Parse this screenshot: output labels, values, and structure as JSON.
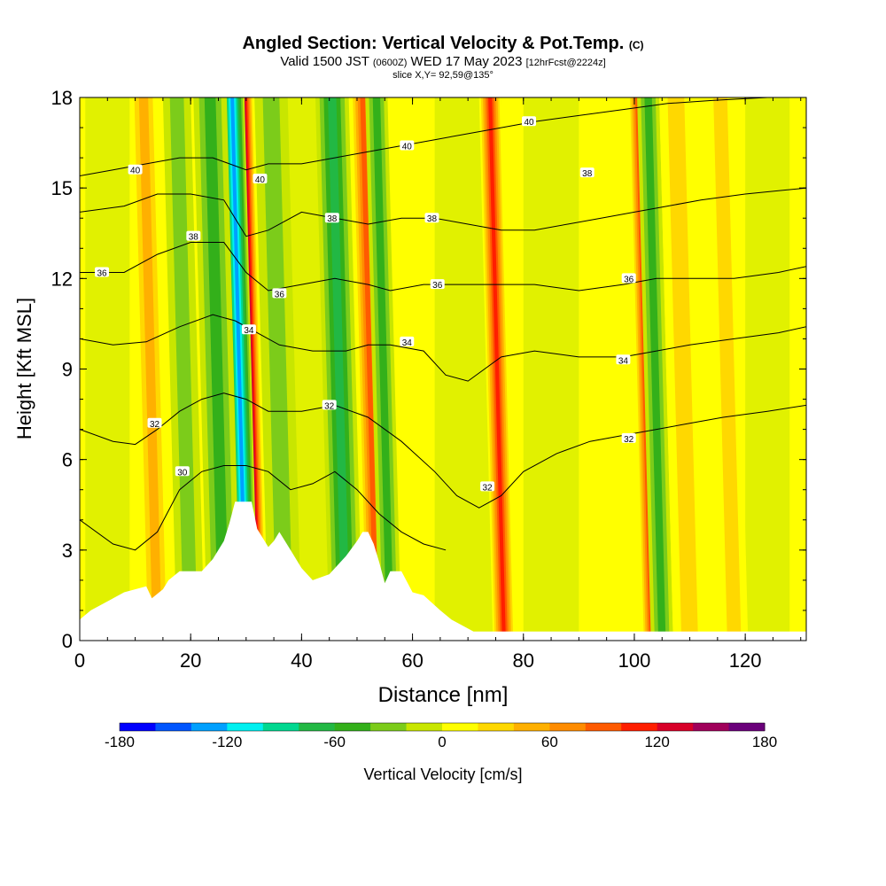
{
  "header": {
    "title": "Angled Section: Vertical Velocity & Pot.Temp.",
    "title_units": "(C)",
    "valid_prefix": "Valid 1500 JST",
    "valid_utc": "(0600Z)",
    "valid_date": "WED 17 May 2023",
    "forecast": "[12hrFcst@2224z]",
    "slice": "slice X,Y= 92,59@135°"
  },
  "chart_data": {
    "type": "heatmap",
    "xlabel": "Distance [nm]",
    "ylabel": "Height [Kft MSL]",
    "xlim": [
      0,
      131
    ],
    "ylim": [
      0,
      18
    ],
    "x_ticks": [
      0,
      20,
      40,
      60,
      80,
      100,
      120
    ],
    "y_ticks": [
      0,
      3,
      6,
      9,
      12,
      15,
      18
    ],
    "colorbar": {
      "label": "Vertical Velocity [cm/s]",
      "min": -180,
      "max": 180,
      "step": 20,
      "tick_values": [
        -180,
        -120,
        -60,
        0,
        60,
        120,
        180
      ],
      "tick_labels": [
        "-180",
        "-120",
        "-60",
        "0",
        "60",
        "120",
        "180"
      ],
      "colors": [
        "#0000ff",
        "#0055ff",
        "#00a0ff",
        "#00f0f0",
        "#00d890",
        "#22b844",
        "#33b01a",
        "#7ccc1a",
        "#c8e600",
        "#ffff00",
        "#ffd800",
        "#ffb000",
        "#ff8c00",
        "#ff5a00",
        "#ff1e00",
        "#d80028",
        "#a0005a",
        "#6a007a"
      ]
    },
    "vertical_velocity_features": [
      {
        "x": 14,
        "w": 2.5,
        "value": 75
      },
      {
        "x": 28.5,
        "w": 2.0,
        "value": 70
      },
      {
        "x": 32,
        "w": 1.8,
        "value": 170
      },
      {
        "x": 30,
        "w": 2.2,
        "value": -150
      },
      {
        "x": 26,
        "w": 3.0,
        "value": -70
      },
      {
        "x": 20,
        "w": 2.5,
        "value": -50
      },
      {
        "x": 37,
        "w": 3.0,
        "value": -40
      },
      {
        "x": 48,
        "w": 3.0,
        "value": -90
      },
      {
        "x": 53.5,
        "w": 2.2,
        "value": 110
      },
      {
        "x": 56,
        "w": 2.0,
        "value": -60
      },
      {
        "x": 76.5,
        "w": 2.0,
        "value": 120
      },
      {
        "x": 103,
        "w": 1.6,
        "value": 100
      },
      {
        "x": 105,
        "w": 2.0,
        "value": -60
      },
      {
        "x": 110,
        "w": 3.0,
        "value": 40
      },
      {
        "x": 118,
        "w": 2.5,
        "value": 40
      }
    ],
    "terrain_height_kft": [
      [
        0,
        0.7
      ],
      [
        2,
        1.0
      ],
      [
        5,
        1.3
      ],
      [
        8,
        1.6
      ],
      [
        12,
        1.8
      ],
      [
        13,
        1.4
      ],
      [
        15,
        1.7
      ],
      [
        16,
        2.0
      ],
      [
        18,
        2.3
      ],
      [
        22,
        2.3
      ],
      [
        24,
        2.7
      ],
      [
        26,
        3.3
      ],
      [
        27,
        3.9
      ],
      [
        28,
        4.6
      ],
      [
        31,
        4.6
      ],
      [
        32,
        3.7
      ],
      [
        34,
        3.1
      ],
      [
        35,
        3.3
      ],
      [
        36,
        3.6
      ],
      [
        38,
        3.0
      ],
      [
        40,
        2.4
      ],
      [
        42,
        2.0
      ],
      [
        45,
        2.2
      ],
      [
        48,
        2.8
      ],
      [
        50,
        3.3
      ],
      [
        51,
        3.6
      ],
      [
        52,
        3.6
      ],
      [
        53,
        3.2
      ],
      [
        54,
        2.6
      ],
      [
        55,
        1.9
      ],
      [
        56,
        2.3
      ],
      [
        58,
        2.3
      ],
      [
        60,
        1.6
      ],
      [
        62,
        1.5
      ],
      [
        65,
        1.0
      ],
      [
        67,
        0.7
      ],
      [
        71,
        0.3
      ],
      [
        131,
        0.3
      ]
    ],
    "pot_temp_contours_c": [
      {
        "value": 30,
        "label": "30",
        "points": [
          [
            0,
            4.0
          ],
          [
            6,
            3.2
          ],
          [
            10,
            3.0
          ],
          [
            14,
            3.6
          ],
          [
            18,
            5.0
          ],
          [
            22,
            5.6
          ],
          [
            26,
            5.8
          ],
          [
            30,
            5.8
          ],
          [
            34,
            5.6
          ],
          [
            38,
            5.0
          ],
          [
            42,
            5.2
          ],
          [
            46,
            5.6
          ],
          [
            50,
            5.0
          ],
          [
            54,
            4.2
          ],
          [
            58,
            3.6
          ],
          [
            62,
            3.2
          ],
          [
            66,
            3.0
          ]
        ]
      },
      {
        "value": 32,
        "label": "32",
        "points": [
          [
            0,
            7.0
          ],
          [
            6,
            6.6
          ],
          [
            10,
            6.5
          ],
          [
            14,
            7.0
          ],
          [
            18,
            7.6
          ],
          [
            22,
            8.0
          ],
          [
            26,
            8.2
          ],
          [
            30,
            8.0
          ],
          [
            34,
            7.6
          ],
          [
            40,
            7.6
          ],
          [
            46,
            7.8
          ],
          [
            52,
            7.4
          ],
          [
            58,
            6.6
          ],
          [
            64,
            5.6
          ],
          [
            68,
            4.8
          ],
          [
            72,
            4.4
          ],
          [
            76,
            4.8
          ],
          [
            80,
            5.6
          ],
          [
            86,
            6.2
          ],
          [
            92,
            6.6
          ],
          [
            98,
            6.8
          ],
          [
            104,
            7.0
          ],
          [
            110,
            7.2
          ],
          [
            116,
            7.4
          ],
          [
            124,
            7.6
          ],
          [
            131,
            7.8
          ]
        ]
      },
      {
        "value": 34,
        "label": "34",
        "points": [
          [
            0,
            10.0
          ],
          [
            6,
            9.8
          ],
          [
            12,
            9.9
          ],
          [
            18,
            10.4
          ],
          [
            24,
            10.8
          ],
          [
            28,
            10.6
          ],
          [
            32,
            10.2
          ],
          [
            36,
            9.8
          ],
          [
            42,
            9.6
          ],
          [
            48,
            9.6
          ],
          [
            52,
            9.8
          ],
          [
            56,
            9.8
          ],
          [
            62,
            9.6
          ],
          [
            66,
            8.8
          ],
          [
            70,
            8.6
          ],
          [
            76,
            9.4
          ],
          [
            82,
            9.6
          ],
          [
            90,
            9.4
          ],
          [
            98,
            9.4
          ],
          [
            104,
            9.6
          ],
          [
            110,
            9.8
          ],
          [
            118,
            10.0
          ],
          [
            126,
            10.2
          ],
          [
            131,
            10.4
          ]
        ]
      },
      {
        "value": 36,
        "label": "36",
        "points": [
          [
            0,
            12.2
          ],
          [
            8,
            12.2
          ],
          [
            14,
            12.8
          ],
          [
            20,
            13.2
          ],
          [
            26,
            13.2
          ],
          [
            30,
            12.2
          ],
          [
            34,
            11.6
          ],
          [
            40,
            11.8
          ],
          [
            46,
            12.0
          ],
          [
            52,
            11.8
          ],
          [
            56,
            11.6
          ],
          [
            62,
            11.8
          ],
          [
            70,
            11.8
          ],
          [
            76,
            11.8
          ],
          [
            82,
            11.8
          ],
          [
            90,
            11.6
          ],
          [
            98,
            11.8
          ],
          [
            104,
            12.0
          ],
          [
            110,
            12.0
          ],
          [
            118,
            12.0
          ],
          [
            126,
            12.2
          ],
          [
            131,
            12.4
          ]
        ]
      },
      {
        "value": 38,
        "label": "38",
        "points": [
          [
            0,
            14.2
          ],
          [
            8,
            14.4
          ],
          [
            14,
            14.8
          ],
          [
            20,
            14.8
          ],
          [
            26,
            14.6
          ],
          [
            30,
            13.4
          ],
          [
            34,
            13.6
          ],
          [
            40,
            14.2
          ],
          [
            46,
            14.0
          ],
          [
            52,
            13.8
          ],
          [
            58,
            14.0
          ],
          [
            64,
            14.0
          ],
          [
            70,
            13.8
          ],
          [
            76,
            13.6
          ],
          [
            82,
            13.6
          ],
          [
            88,
            13.8
          ],
          [
            94,
            14.0
          ],
          [
            100,
            14.2
          ],
          [
            106,
            14.4
          ],
          [
            112,
            14.6
          ],
          [
            120,
            14.8
          ],
          [
            131,
            15.0
          ]
        ]
      },
      {
        "value": 40,
        "label": "40",
        "points": [
          [
            0,
            15.4
          ],
          [
            6,
            15.6
          ],
          [
            12,
            15.8
          ],
          [
            18,
            16.0
          ],
          [
            24,
            16.0
          ],
          [
            30,
            15.6
          ],
          [
            34,
            15.8
          ],
          [
            40,
            15.8
          ],
          [
            46,
            16.0
          ],
          [
            52,
            16.2
          ],
          [
            58,
            16.4
          ],
          [
            64,
            16.6
          ],
          [
            70,
            16.8
          ],
          [
            76,
            17.0
          ],
          [
            82,
            17.2
          ],
          [
            90,
            17.4
          ],
          [
            98,
            17.6
          ],
          [
            106,
            17.8
          ],
          [
            114,
            17.9
          ],
          [
            124,
            18.0
          ],
          [
            131,
            18.0
          ]
        ]
      }
    ],
    "contour_labels": [
      {
        "label": "40",
        "x": 10,
        "y": 15.6
      },
      {
        "label": "40",
        "x": 32.5,
        "y": 15.3
      },
      {
        "label": "40",
        "x": 59,
        "y": 16.4
      },
      {
        "label": "40",
        "x": 81,
        "y": 17.2
      },
      {
        "label": "38",
        "x": 20.5,
        "y": 13.4
      },
      {
        "label": "38",
        "x": 45.5,
        "y": 14.0
      },
      {
        "label": "38",
        "x": 63.5,
        "y": 14.0
      },
      {
        "label": "38",
        "x": 91.5,
        "y": 15.5
      },
      {
        "label": "36",
        "x": 4,
        "y": 12.2
      },
      {
        "label": "36",
        "x": 36,
        "y": 11.5
      },
      {
        "label": "36",
        "x": 64.5,
        "y": 11.8
      },
      {
        "label": "36",
        "x": 99,
        "y": 12.0
      },
      {
        "label": "34",
        "x": 30.5,
        "y": 10.3
      },
      {
        "label": "34",
        "x": 59,
        "y": 9.9
      },
      {
        "label": "34",
        "x": 98,
        "y": 9.3
      },
      {
        "label": "32",
        "x": 45,
        "y": 7.8
      },
      {
        "label": "32",
        "x": 13.5,
        "y": 7.2
      },
      {
        "label": "32",
        "x": 73.5,
        "y": 5.1
      },
      {
        "label": "32",
        "x": 99,
        "y": 6.7
      },
      {
        "label": "30",
        "x": 18.5,
        "y": 5.6
      }
    ]
  }
}
